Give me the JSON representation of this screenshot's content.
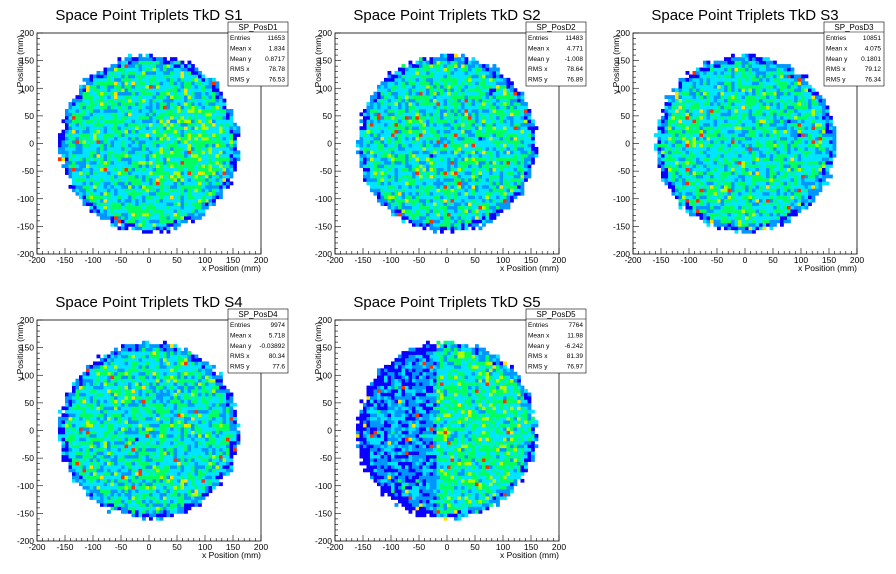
{
  "chart_data": [
    {
      "type": "heatmap",
      "title": "Space Point Triplets TkD S1",
      "xlabel": "x Position (mm)",
      "ylabel": "y Position (mm)",
      "xlim": [
        -200,
        200
      ],
      "ylim": [
        -200,
        200
      ],
      "xticks": [
        "-200",
        "-150",
        "-100",
        "-50",
        "0",
        "50",
        "100",
        "150",
        "200"
      ],
      "yticks": [
        "-200",
        "-150",
        "-100",
        "-50",
        "0",
        "50",
        "100",
        "150",
        "200"
      ],
      "region_radius": 160,
      "stats": {
        "name": "SP_PosD1",
        "rows": [
          {
            "label": "Entries",
            "value": "11653"
          },
          {
            "label": "Mean x",
            "value": "1.834"
          },
          {
            "label": "Mean y",
            "value": "0.8717"
          },
          {
            "label": "RMS x",
            "value": "78.78"
          },
          {
            "label": "RMS y",
            "value": "76.53"
          }
        ]
      }
    },
    {
      "type": "heatmap",
      "title": "Space Point Triplets TkD S2",
      "xlabel": "x Position (mm)",
      "ylabel": "y Position (mm)",
      "xlim": [
        -200,
        200
      ],
      "ylim": [
        -200,
        200
      ],
      "xticks": [
        "-200",
        "-150",
        "-100",
        "-50",
        "0",
        "50",
        "100",
        "150",
        "200"
      ],
      "yticks": [
        "-200",
        "-150",
        "-100",
        "-50",
        "0",
        "50",
        "100",
        "150",
        "200"
      ],
      "region_radius": 160,
      "stats": {
        "name": "SP_PosD2",
        "rows": [
          {
            "label": "Entries",
            "value": "11483"
          },
          {
            "label": "Mean x",
            "value": "4.771"
          },
          {
            "label": "Mean y",
            "value": "-1.008"
          },
          {
            "label": "RMS x",
            "value": "78.64"
          },
          {
            "label": "RMS y",
            "value": "76.89"
          }
        ]
      }
    },
    {
      "type": "heatmap",
      "title": "Space Point Triplets TkD S3",
      "xlabel": "x Position (mm)",
      "ylabel": "y Position (mm)",
      "xlim": [
        -200,
        200
      ],
      "ylim": [
        -200,
        200
      ],
      "xticks": [
        "-200",
        "-150",
        "-100",
        "-50",
        "0",
        "50",
        "100",
        "150",
        "200"
      ],
      "yticks": [
        "-200",
        "-150",
        "-100",
        "-50",
        "0",
        "50",
        "100",
        "150",
        "200"
      ],
      "region_radius": 160,
      "stats": {
        "name": "SP_PosD3",
        "rows": [
          {
            "label": "Entries",
            "value": "10851"
          },
          {
            "label": "Mean x",
            "value": "4.075"
          },
          {
            "label": "Mean y",
            "value": "0.1801"
          },
          {
            "label": "RMS x",
            "value": "79.12"
          },
          {
            "label": "RMS y",
            "value": "76.34"
          }
        ]
      }
    },
    {
      "type": "heatmap",
      "title": "Space Point Triplets TkD S4",
      "xlabel": "x Position (mm)",
      "ylabel": "y Position (mm)",
      "xlim": [
        -200,
        200
      ],
      "ylim": [
        -200,
        200
      ],
      "xticks": [
        "-200",
        "-150",
        "-100",
        "-50",
        "0",
        "50",
        "100",
        "150",
        "200"
      ],
      "yticks": [
        "-200",
        "-150",
        "-100",
        "-50",
        "0",
        "50",
        "100",
        "150",
        "200"
      ],
      "region_radius": 160,
      "stats": {
        "name": "SP_PosD4",
        "rows": [
          {
            "label": "Entries",
            "value": "9974"
          },
          {
            "label": "Mean x",
            "value": "5.718"
          },
          {
            "label": "Mean y",
            "value": "-0.03892"
          },
          {
            "label": "RMS x",
            "value": "80.34"
          },
          {
            "label": "RMS y",
            "value": "77.6"
          }
        ]
      }
    },
    {
      "type": "heatmap",
      "title": "Space Point Triplets TkD S5",
      "xlabel": "x Position (mm)",
      "ylabel": "y Position (mm)",
      "xlim": [
        -200,
        200
      ],
      "ylim": [
        -200,
        200
      ],
      "xticks": [
        "-200",
        "-150",
        "-100",
        "-50",
        "0",
        "50",
        "100",
        "150",
        "200"
      ],
      "yticks": [
        "-200",
        "-150",
        "-100",
        "-50",
        "0",
        "50",
        "100",
        "150",
        "200"
      ],
      "region_radius": 160,
      "stats": {
        "name": "SP_PosD5",
        "rows": [
          {
            "label": "Entries",
            "value": "7764"
          },
          {
            "label": "Mean x",
            "value": "11.98"
          },
          {
            "label": "Mean y",
            "value": "-6.242"
          },
          {
            "label": "RMS x",
            "value": "81.39"
          },
          {
            "label": "RMS y",
            "value": "76.97"
          }
        ]
      }
    }
  ],
  "colors": {
    "palette": [
      "#0a00ff",
      "#0096ff",
      "#00e5ff",
      "#00ff60",
      "#b0ff00",
      "#ffe000",
      "#ff3000"
    ],
    "frame": "#000000",
    "background": "#ffffff"
  }
}
